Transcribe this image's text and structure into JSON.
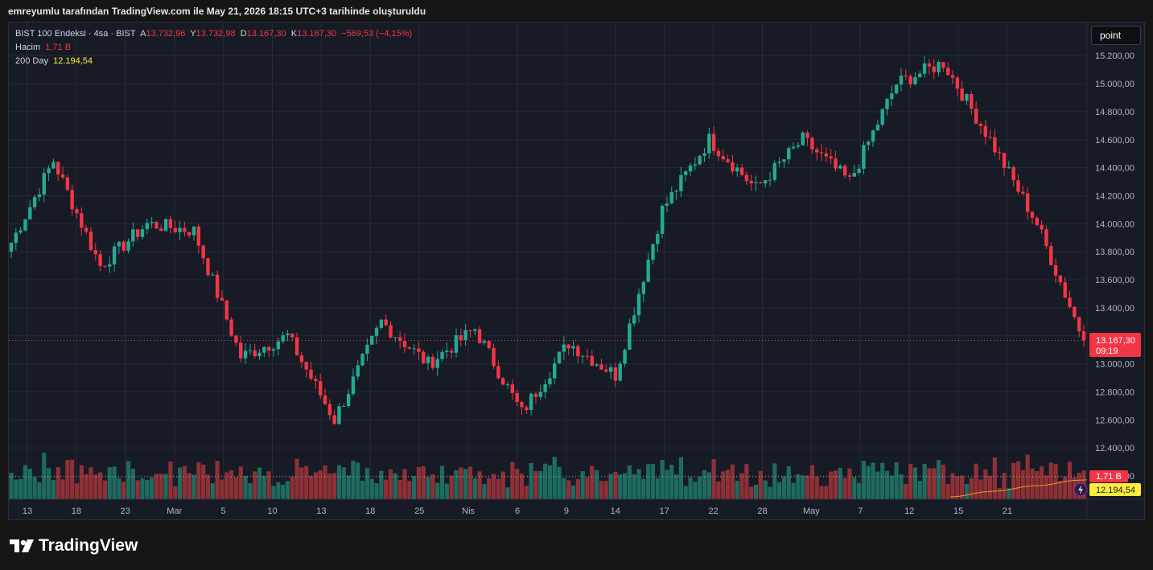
{
  "header": {
    "caption": "emreyumlu tarafından TradingView.com ile May 21, 2026 18:15 UTC+3 tarihinde oluşturuldu"
  },
  "legend": {
    "symbol": "BIST 100 Endeksi · 4sa · BIST",
    "o_label": "A",
    "o_value": "13.732,96",
    "h_label": "Y",
    "h_value": "13.732,98",
    "l_label": "D",
    "l_value": "13.167,30",
    "c_label": "K",
    "c_value": "13.167,30",
    "change": "−569,53 (−4,15%)",
    "volume_label": "Hacim",
    "volume_value": "1,71 B",
    "ma_label": "200 Day",
    "ma_value": "12.194,54"
  },
  "toolbar": {
    "point_label": "point"
  },
  "price_tag": {
    "price": "13.167,30",
    "countdown": "09:19"
  },
  "volume_tag": "1,71 B",
  "ma_tag": "12.194,54",
  "brand": {
    "name": "TradingView"
  },
  "colors": {
    "up": "#22ab94",
    "down": "#f23645",
    "up_volume": "#1e6b5f",
    "down_volume": "#8f3036",
    "ma": "#e59a2f",
    "background": "#171b26",
    "grid": "#262a35"
  },
  "chart_data": {
    "type": "candlestick",
    "title": "BIST 100 Endeksi · 4sa · BIST",
    "y_ticks": [
      "15.200,00",
      "15.000,00",
      "14.800,00",
      "14.600,00",
      "14.400,00",
      "14.200,00",
      "14.000,00",
      "13.800,00",
      "13.600,00",
      "13.400,00",
      "13.200,00",
      "13.000,00",
      "12.800,00",
      "12.600,00",
      "12.400,00",
      "12.200,00"
    ],
    "ylim": [
      12200,
      15230
    ],
    "x_labels": [
      "13",
      "18",
      "23",
      "Mar",
      "5",
      "10",
      "13",
      "18",
      "25",
      "Nis",
      "6",
      "9",
      "14",
      "17",
      "22",
      "28",
      "May",
      "7",
      "12",
      "15",
      "21"
    ],
    "last_price": 13167.3,
    "segments": [
      {
        "from": 13800,
        "to": 14450
      },
      {
        "from": 14450,
        "to": 13700
      },
      {
        "from": 13700,
        "to": 14000
      },
      {
        "from": 14000,
        "to": 13950
      },
      {
        "from": 13950,
        "to": 13050
      },
      {
        "from": 13050,
        "to": 13200
      },
      {
        "from": 13200,
        "to": 12600
      },
      {
        "from": 12600,
        "to": 13300
      },
      {
        "from": 13300,
        "to": 13000
      },
      {
        "from": 13000,
        "to": 13250
      },
      {
        "from": 13250,
        "to": 12650
      },
      {
        "from": 12650,
        "to": 13150
      },
      {
        "from": 13150,
        "to": 12920
      },
      {
        "from": 12920,
        "to": 14100
      },
      {
        "from": 14100,
        "to": 14600
      },
      {
        "from": 14600,
        "to": 14250
      },
      {
        "from": 14250,
        "to": 14600
      },
      {
        "from": 14600,
        "to": 14300
      },
      {
        "from": 14300,
        "to": 15000
      },
      {
        "from": 15000,
        "to": 15150
      },
      {
        "from": 15150,
        "to": 14600
      },
      {
        "from": 14600,
        "to": 14000
      },
      {
        "from": 14000,
        "to": 13167
      }
    ],
    "volume_max": 3.0,
    "ma_200": 12194.54
  }
}
